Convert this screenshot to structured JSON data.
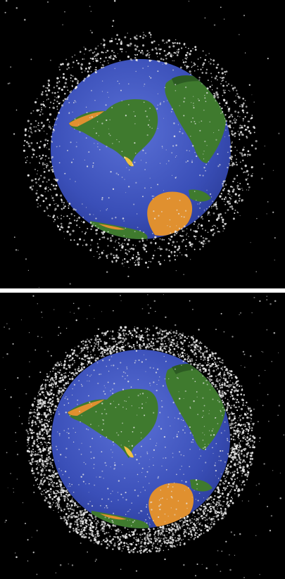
{
  "figure": {
    "panels": [
      {
        "id": "top",
        "subject": "earth-globe",
        "debris_density": "sparse"
      },
      {
        "id": "bottom",
        "subject": "earth-globe",
        "debris_density": "dense"
      }
    ]
  },
  "colors": {
    "space_background": "#000000",
    "ocean": "#3a4fb8",
    "ocean_light": "#5a70d6",
    "land_green": "#3f7a2e",
    "land_green_dark": "#2c5b22",
    "land_orange": "#e0902f",
    "land_yellow": "#f0c040",
    "debris": "#e8e8e8",
    "separator": "#ffffff"
  }
}
